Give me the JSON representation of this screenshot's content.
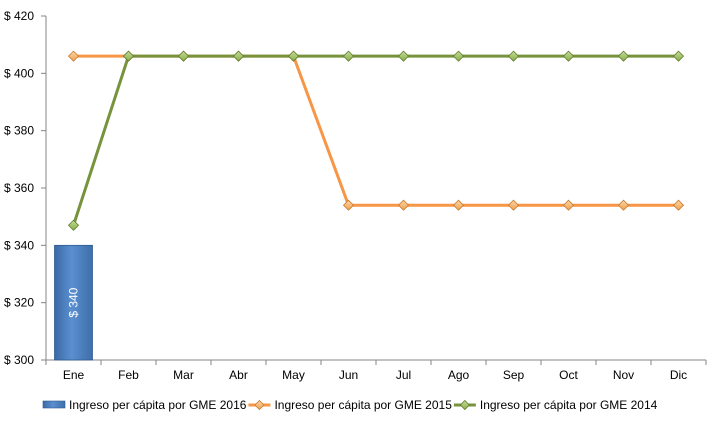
{
  "chart_data": {
    "type": "bar",
    "categories": [
      "Ene",
      "Feb",
      "Mar",
      "Abr",
      "May",
      "Jun",
      "Jul",
      "Ago",
      "Sep",
      "Oct",
      "Nov",
      "Dic"
    ],
    "ylim": [
      300,
      420
    ],
    "y_ticks": [
      300,
      320,
      340,
      360,
      380,
      400,
      420
    ],
    "y_tick_format": "$ {v}",
    "grid": false,
    "legend_position": "bottom",
    "series": [
      {
        "name": "Ingreso per cápita por GME 2016",
        "type": "bar",
        "color": "#4a7ebb",
        "values": [
          340,
          null,
          null,
          null,
          null,
          null,
          null,
          null,
          null,
          null,
          null,
          null
        ],
        "data_labels": [
          "$ 340",
          null,
          null,
          null,
          null,
          null,
          null,
          null,
          null,
          null,
          null,
          null
        ]
      },
      {
        "name": "Ingreso per cápita por GME 2015",
        "type": "line",
        "color": "#f79646",
        "values": [
          406,
          406,
          406,
          406,
          406,
          354,
          354,
          354,
          354,
          354,
          354,
          354
        ]
      },
      {
        "name": "Ingreso per cápita por GME 2014",
        "type": "line",
        "color": "#77933c",
        "values": [
          347,
          406,
          406,
          406,
          406,
          406,
          406,
          406,
          406,
          406,
          406,
          406
        ]
      }
    ]
  }
}
